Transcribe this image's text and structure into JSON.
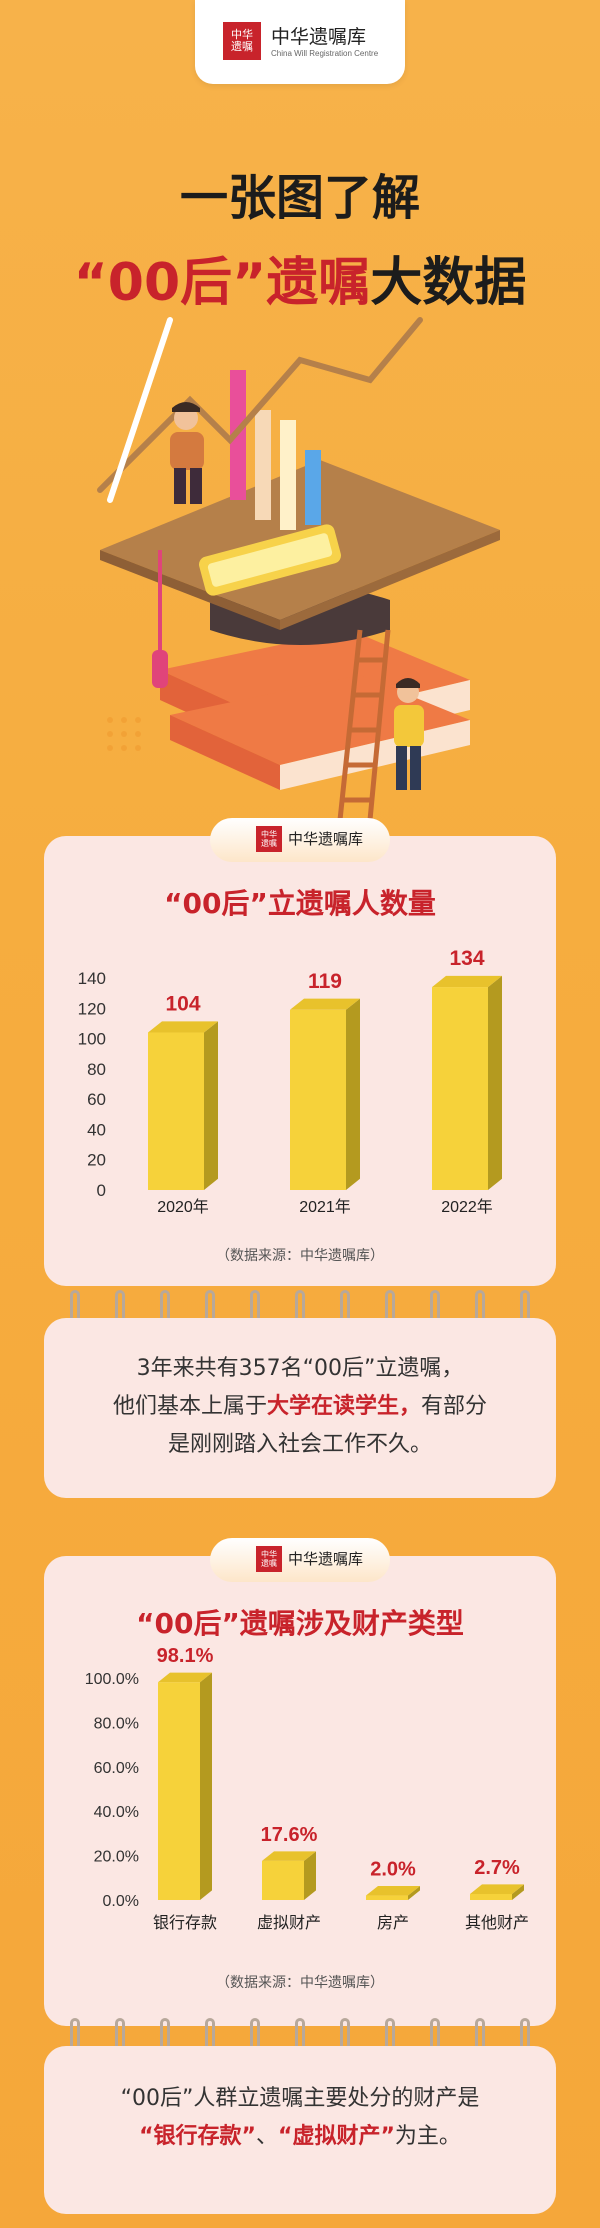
{
  "logo": {
    "seal": "中华遗嘱库",
    "name": "中华遗嘱库",
    "name_en": "China Will Registration Centre"
  },
  "headline": {
    "line1": "一张图了解",
    "line2_a": "“00后”",
    "line2_b": "遗嘱",
    "line2_c": "大数据"
  },
  "colors": {
    "accent_red": "#c8232b",
    "bar_yellow": "#f6d23a",
    "background": "#f6ad3f",
    "card": "#fbe7e3"
  },
  "section1": {
    "header_brand": "中华遗嘱库",
    "title": "“00后”立遗嘱人数量",
    "source": "（数据来源：中华遗嘱库）",
    "note": {
      "line1": "3年来共有357名“00后”立遗嘱，",
      "line2_a": "他们基本上属于",
      "line2_em": "大学在读学生，",
      "line2_b": "有部分",
      "line3": "是刚刚踏入社会工作不久。"
    }
  },
  "section2": {
    "header_brand": "中华遗嘱库",
    "title": "“00后”遗嘱涉及财产类型",
    "source": "（数据来源：中华遗嘱库）",
    "note": {
      "line1": "“00后”人群立遗嘱主要处分的财产是",
      "line2_em1": "“银行存款”",
      "line2_sep": "、",
      "line2_em2": "“虚拟财产”",
      "line2_b": "为主。"
    }
  },
  "chart_data": [
    {
      "type": "bar",
      "title": "“00后”立遗嘱人数量",
      "categories": [
        "2020年",
        "2021年",
        "2022年"
      ],
      "values": [
        104,
        119,
        134
      ],
      "value_labels": [
        "104",
        "119",
        "134"
      ],
      "yticks": [
        "0",
        "20",
        "40",
        "60",
        "80",
        "100",
        "120",
        "140"
      ],
      "ylim": [
        0,
        140
      ]
    },
    {
      "type": "bar",
      "title": "“00后”遗嘱涉及财产类型",
      "categories": [
        "银行存款",
        "虚拟财产",
        "房产",
        "其他财产"
      ],
      "values": [
        98.1,
        17.6,
        2.0,
        2.7
      ],
      "value_labels": [
        "98.1%",
        "17.6%",
        "2.0%",
        "2.7%"
      ],
      "yticks": [
        "0.0%",
        "20.0%",
        "40.0%",
        "60.0%",
        "80.0%",
        "100.0%"
      ],
      "ylim": [
        0,
        100
      ]
    }
  ]
}
